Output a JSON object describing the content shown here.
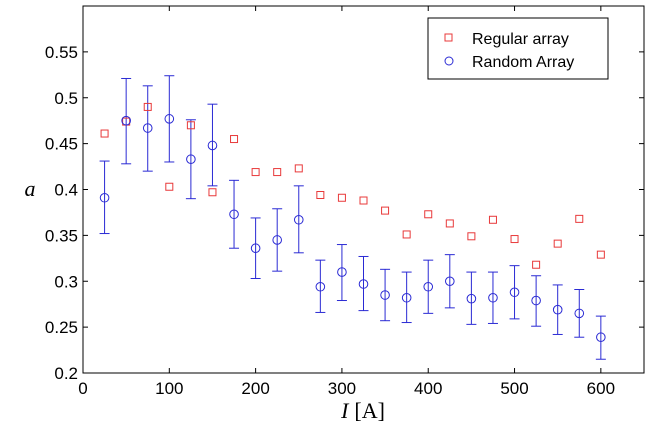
{
  "chart_data": {
    "type": "scatter",
    "title": "",
    "xlabel": "I [A]",
    "xlabel_parts": {
      "symbol": "I",
      "unit": "[A]"
    },
    "ylabel": "a",
    "xlim": [
      0,
      650
    ],
    "ylim": [
      0.2,
      0.6
    ],
    "xticks": [
      0,
      100,
      200,
      300,
      400,
      500,
      600
    ],
    "yticks": [
      0.2,
      0.25,
      0.3,
      0.35,
      0.4,
      0.45,
      0.5,
      0.55
    ],
    "xtick_labels": [
      "0",
      "100",
      "200",
      "300",
      "400",
      "500",
      "600"
    ],
    "ytick_labels": [
      "0.2",
      "0.25",
      "0.3",
      "0.35",
      "0.4",
      "0.45",
      "0.5",
      "0.55"
    ],
    "grid": false,
    "legend_position": "top-right",
    "series": [
      {
        "name": "Regular array",
        "marker": "square",
        "color": "#e8393a",
        "x": [
          25,
          50,
          75,
          100,
          125,
          150,
          175,
          200,
          225,
          250,
          275,
          300,
          325,
          350,
          375,
          400,
          425,
          450,
          475,
          500,
          525,
          550,
          575,
          600
        ],
        "y": [
          0.461,
          0.474,
          0.49,
          0.403,
          0.47,
          0.397,
          0.455,
          0.419,
          0.419,
          0.423,
          0.394,
          0.391,
          0.388,
          0.377,
          0.351,
          0.373,
          0.363,
          0.349,
          0.367,
          0.346,
          0.318,
          0.341,
          0.368,
          0.329
        ]
      },
      {
        "name": "Random Array",
        "marker": "circle",
        "color": "#2a2ad4",
        "x": [
          25,
          50,
          75,
          100,
          125,
          150,
          175,
          200,
          225,
          250,
          275,
          300,
          325,
          350,
          375,
          400,
          425,
          450,
          475,
          500,
          525,
          550,
          575,
          600
        ],
        "y": [
          0.391,
          0.475,
          0.467,
          0.477,
          0.433,
          0.448,
          0.373,
          0.336,
          0.345,
          0.367,
          0.294,
          0.31,
          0.297,
          0.285,
          0.282,
          0.294,
          0.3,
          0.281,
          0.282,
          0.288,
          0.279,
          0.269,
          0.265,
          0.239
        ],
        "err_low": [
          0.352,
          0.428,
          0.42,
          0.43,
          0.39,
          0.404,
          0.336,
          0.303,
          0.311,
          0.331,
          0.266,
          0.279,
          0.268,
          0.257,
          0.255,
          0.265,
          0.271,
          0.253,
          0.254,
          0.259,
          0.251,
          0.242,
          0.239,
          0.215
        ],
        "err_high": [
          0.431,
          0.521,
          0.513,
          0.524,
          0.476,
          0.493,
          0.41,
          0.369,
          0.379,
          0.404,
          0.323,
          0.34,
          0.327,
          0.313,
          0.31,
          0.323,
          0.329,
          0.31,
          0.31,
          0.317,
          0.306,
          0.296,
          0.291,
          0.262
        ]
      }
    ]
  }
}
